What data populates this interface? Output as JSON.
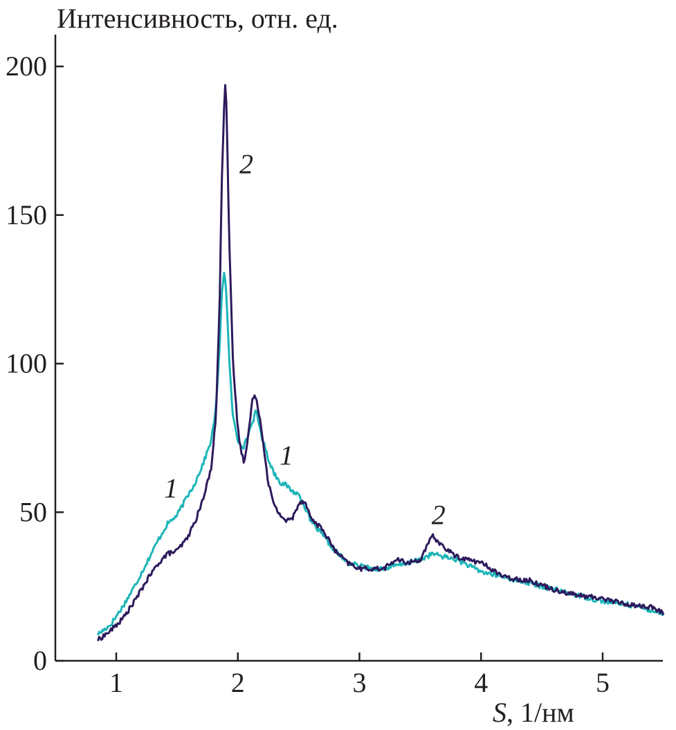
{
  "chart_data": {
    "type": "line",
    "title": "",
    "ylabel": "Интенсивность, отн. ед.",
    "xlabel_italic": "S",
    "xlabel_rest": ", 1/нм",
    "xlim": [
      0.5,
      5.5
    ],
    "ylim": [
      0,
      210
    ],
    "xticks": [
      1,
      2,
      3,
      4,
      5
    ],
    "xtick_labels": [
      "1",
      "2",
      "3",
      "4",
      "5"
    ],
    "yticks": [
      0,
      50,
      100,
      150,
      200
    ],
    "ytick_labels": [
      "0",
      "50",
      "100",
      "150",
      "200"
    ],
    "grid": false,
    "legend": "none",
    "series": [
      {
        "id": "1",
        "color": "#1db5b8",
        "x": [
          0.85,
          0.95,
          1.05,
          1.15,
          1.25,
          1.35,
          1.42,
          1.5,
          1.58,
          1.65,
          1.72,
          1.78,
          1.82,
          1.85,
          1.87,
          1.89,
          1.91,
          1.93,
          1.96,
          2.0,
          2.05,
          2.1,
          2.15,
          2.2,
          2.25,
          2.3,
          2.35,
          2.4,
          2.45,
          2.5,
          2.55,
          2.6,
          2.7,
          2.8,
          2.9,
          3.0,
          3.1,
          3.2,
          3.3,
          3.4,
          3.5,
          3.6,
          3.7,
          3.8,
          4.0,
          4.2,
          4.4,
          4.6,
          4.8,
          5.0,
          5.2,
          5.4,
          5.5
        ],
        "y": [
          9,
          12,
          18,
          25,
          33,
          41,
          46,
          49,
          55,
          60,
          67,
          74,
          85,
          105,
          125,
          132,
          120,
          100,
          82,
          74,
          72,
          78,
          84,
          75,
          68,
          63,
          60,
          59,
          57,
          56,
          52,
          47,
          42,
          37,
          33,
          32,
          31,
          31,
          32,
          33,
          34,
          36,
          35,
          34,
          30,
          28,
          26,
          24,
          22,
          20,
          19,
          17,
          16
        ]
      },
      {
        "id": "2",
        "color": "#2d1a5c",
        "x": [
          0.85,
          0.95,
          1.05,
          1.15,
          1.25,
          1.35,
          1.42,
          1.5,
          1.58,
          1.65,
          1.72,
          1.78,
          1.82,
          1.85,
          1.87,
          1.89,
          1.9,
          1.91,
          1.93,
          1.96,
          2.0,
          2.03,
          2.05,
          2.08,
          2.12,
          2.15,
          2.18,
          2.22,
          2.25,
          2.3,
          2.35,
          2.4,
          2.45,
          2.5,
          2.55,
          2.6,
          2.7,
          2.8,
          2.9,
          3.0,
          3.1,
          3.2,
          3.3,
          3.4,
          3.5,
          3.55,
          3.6,
          3.65,
          3.7,
          3.8,
          4.0,
          4.2,
          4.4,
          4.6,
          4.8,
          5.0,
          5.2,
          5.4,
          5.5
        ],
        "y": [
          7,
          10,
          14,
          20,
          27,
          33,
          36,
          37,
          41,
          47,
          55,
          65,
          82,
          120,
          165,
          190,
          197,
          180,
          140,
          100,
          78,
          70,
          67,
          74,
          88,
          89,
          82,
          70,
          60,
          52,
          49,
          47,
          48,
          53,
          54,
          48,
          44,
          37,
          33,
          31,
          31,
          31,
          34,
          33,
          34,
          38,
          42,
          40,
          38,
          35,
          33,
          28,
          27,
          24,
          22,
          21,
          19,
          18,
          16
        ]
      }
    ],
    "annotations": [
      {
        "text": "1",
        "series": "1",
        "x": 1.45,
        "y": 55
      },
      {
        "text": "1",
        "series": "1",
        "x": 2.4,
        "y": 66
      },
      {
        "text": "2",
        "series": "2",
        "x": 2.07,
        "y": 164
      },
      {
        "text": "2",
        "series": "2",
        "x": 3.65,
        "y": 46
      }
    ]
  }
}
